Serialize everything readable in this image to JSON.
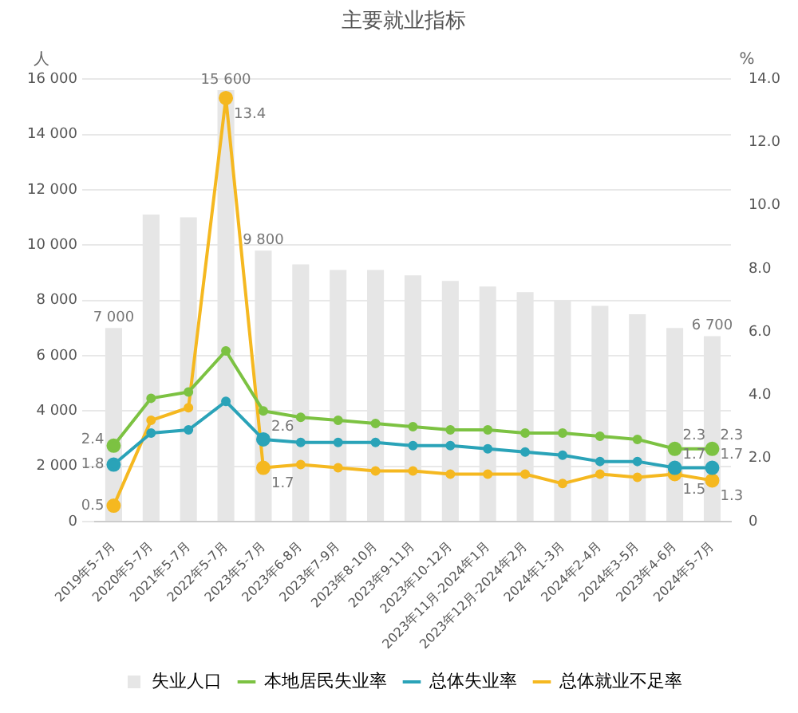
{
  "chart_data": {
    "type": "bar",
    "title": "主要就业指标",
    "ylabel": "人",
    "y2label": "%",
    "categories": [
      "2019年5-7月",
      "2020年5-7月",
      "2021年5-7月",
      "2022年5-7月",
      "2023年5-7月",
      "2023年6-8月",
      "2023年7-9月",
      "2023年8-10月",
      "2023年9-11月",
      "2023年10-12月",
      "2023年11月-2024年1月",
      "2023年12月-2024年2月",
      "2024年1-3月",
      "2024年2-4月",
      "2024年3-5月",
      "2023年4-6月",
      "2024年5-7月"
    ],
    "series": [
      {
        "name": "失业人口",
        "color": "#e6e6e6",
        "values": [
          7000,
          11100,
          11000,
          15600,
          9800,
          9300,
          9100,
          9100,
          8900,
          8700,
          8500,
          8300,
          8000,
          7800,
          7500,
          7000,
          6700
        ],
        "value_labels": [
          "7 000",
          null,
          null,
          "15 600",
          "9 800",
          null,
          null,
          null,
          null,
          null,
          null,
          null,
          null,
          null,
          null,
          null,
          "6 700"
        ]
      },
      {
        "name": "本地居民失业率",
        "type": "line",
        "axis": "y2",
        "color": "#7cc242",
        "values": [
          2.4,
          3.9,
          4.1,
          5.4,
          3.5,
          3.3,
          3.2,
          3.1,
          3.0,
          2.9,
          2.9,
          2.8,
          2.8,
          2.7,
          2.6,
          2.3,
          2.3
        ],
        "value_labels": [
          "2.4",
          null,
          null,
          null,
          null,
          null,
          null,
          null,
          null,
          null,
          null,
          null,
          null,
          null,
          null,
          "2.3",
          "2.3"
        ]
      },
      {
        "name": "总体失业率",
        "type": "line",
        "axis": "y2",
        "color": "#2aa3b8",
        "values": [
          1.8,
          2.8,
          2.9,
          3.8,
          2.6,
          2.5,
          2.5,
          2.5,
          2.4,
          2.4,
          2.3,
          2.2,
          2.1,
          1.9,
          1.9,
          1.7,
          1.7
        ],
        "value_labels": [
          "1.8",
          null,
          null,
          null,
          "2.6",
          null,
          null,
          null,
          null,
          null,
          null,
          null,
          null,
          null,
          null,
          "1.7",
          "1.7"
        ]
      },
      {
        "name": "总体就业不足率",
        "type": "line",
        "axis": "y2",
        "color": "#f5b820",
        "values": [
          0.5,
          3.2,
          3.6,
          13.4,
          1.7,
          1.8,
          1.7,
          1.6,
          1.6,
          1.5,
          1.5,
          1.5,
          1.2,
          1.5,
          1.4,
          1.5,
          1.3
        ],
        "value_labels": [
          "0.5",
          null,
          null,
          "13.4",
          "1.7",
          null,
          null,
          null,
          null,
          null,
          null,
          null,
          null,
          null,
          null,
          "1.5",
          "1.3"
        ]
      }
    ],
    "ylim": [
      0,
      16000
    ],
    "yticks": [
      0,
      {
        "value": 2000,
        "label": "2 000"
      },
      {
        "value": 4000,
        "label": "4 000"
      },
      {
        "value": 6000,
        "label": "6 000"
      },
      {
        "value": 8000,
        "label": "8 000"
      },
      {
        "value": 10000,
        "label": "10 000"
      },
      {
        "value": 12000,
        "label": "12 000"
      },
      {
        "value": 14000,
        "label": "14 000"
      },
      {
        "value": 16000,
        "label": "16 000"
      }
    ],
    "y2lim": [
      0,
      14
    ],
    "y2ticks": [
      0,
      {
        "value": 2,
        "label": "2.0"
      },
      {
        "value": 4,
        "label": "4.0"
      },
      {
        "value": 6,
        "label": "6.0"
      },
      {
        "value": 8,
        "label": "8.0"
      },
      {
        "value": 10,
        "label": "10.0"
      },
      {
        "value": 12,
        "label": "12.0"
      },
      {
        "value": 14,
        "label": "14.0"
      }
    ],
    "grid": "y",
    "legend": "bottom",
    "marker": "circle"
  }
}
